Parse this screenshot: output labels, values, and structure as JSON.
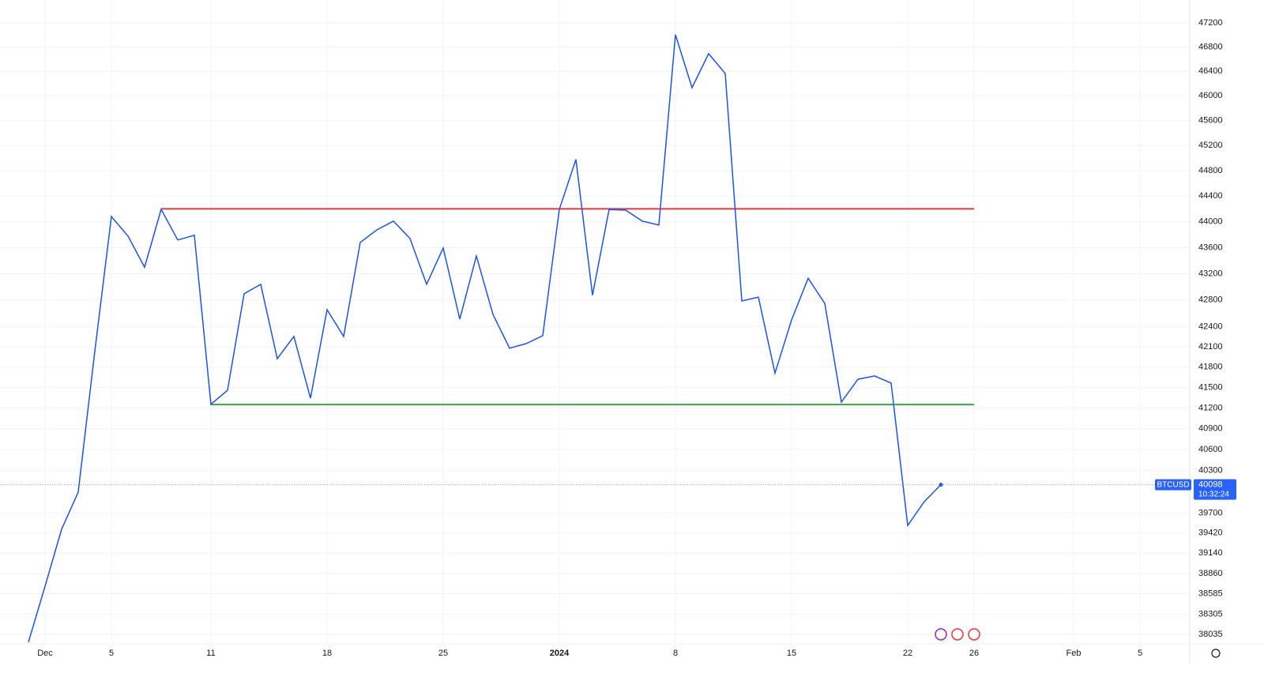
{
  "chart_data": {
    "type": "line",
    "log_scale": true,
    "grid": true,
    "x": [
      "Nov 30",
      "Dec 1",
      "Dec 2",
      "Dec 3",
      "Dec 4",
      "Dec 5",
      "Dec 6",
      "Dec 7",
      "Dec 8",
      "Dec 9",
      "Dec 10",
      "Dec 11",
      "Dec 12",
      "Dec 13",
      "Dec 14",
      "Dec 15",
      "Dec 16",
      "Dec 17",
      "Dec 18",
      "Dec 19",
      "Dec 20",
      "Dec 21",
      "Dec 22",
      "Dec 23",
      "Dec 24",
      "Dec 25",
      "Dec 26",
      "Dec 27",
      "Dec 28",
      "Dec 29",
      "Dec 30",
      "Dec 31",
      "Jan 1",
      "Jan 2",
      "Jan 3",
      "Jan 4",
      "Jan 5",
      "Jan 6",
      "Jan 7",
      "Jan 8",
      "Jan 9",
      "Jan 10",
      "Jan 11",
      "Jan 12",
      "Jan 13",
      "Jan 14",
      "Jan 15",
      "Jan 16",
      "Jan 17",
      "Jan 18",
      "Jan 19",
      "Jan 20",
      "Jan 21",
      "Jan 22",
      "Jan 23",
      "Jan 24"
    ],
    "series": [
      {
        "name": "BTCUSD",
        "color": "#1e53e5",
        "values": [
          37930,
          38686,
          39474,
          39993,
          42030,
          44080,
          43778,
          43300,
          44193,
          43717,
          43790,
          41253,
          41457,
          42895,
          43039,
          41924,
          42253,
          41343,
          42655,
          42253,
          43680,
          43873,
          44009,
          43740,
          43039,
          43594,
          42513,
          43471,
          42584,
          42079,
          42146,
          42265,
          44193,
          44977,
          42873,
          44190,
          44180,
          44009,
          43950,
          47003,
          46133,
          46690,
          46364,
          42786,
          42845,
          41710,
          42500,
          43131,
          42750,
          41285,
          41620,
          41668,
          41564,
          39525,
          39860,
          40098
        ]
      }
    ],
    "levels": [
      {
        "value": 44200,
        "color": "#e5393a",
        "from": "Dec 8",
        "to": "Jan 26"
      },
      {
        "value": 41250,
        "color": "#43a047",
        "from": "Dec 11",
        "to": "Jan 26"
      }
    ],
    "last_price": {
      "label": "BTCUSD",
      "value": 40098,
      "countdown": "10:32:24"
    },
    "xlim": [
      "Nov 28",
      "Feb 8"
    ],
    "xticks": [
      {
        "value": "Dec 1",
        "label": "Dec"
      },
      {
        "value": "Dec 5",
        "label": "5"
      },
      {
        "value": "Dec 11",
        "label": "11"
      },
      {
        "value": "Dec 18",
        "label": "18"
      },
      {
        "value": "Dec 25",
        "label": "25"
      },
      {
        "value": "Jan 1",
        "label": "2024"
      },
      {
        "value": "Jan 8",
        "label": "8"
      },
      {
        "value": "Jan 15",
        "label": "15"
      },
      {
        "value": "Jan 22",
        "label": "22"
      },
      {
        "value": "Jan 26",
        "label": "26"
      },
      {
        "value": "Feb 1",
        "label": "Feb"
      },
      {
        "value": "Feb 5",
        "label": "5"
      }
    ],
    "ylim": [
      37908,
      47583
    ],
    "yticks": [
      47200,
      46800,
      46400,
      46000,
      45600,
      45200,
      44800,
      44400,
      44000,
      43600,
      43200,
      42800,
      42400,
      42100,
      41800,
      41500,
      41200,
      40900,
      40600,
      40300,
      39700,
      39420,
      39140,
      38860,
      38585,
      38305,
      38035
    ]
  }
}
